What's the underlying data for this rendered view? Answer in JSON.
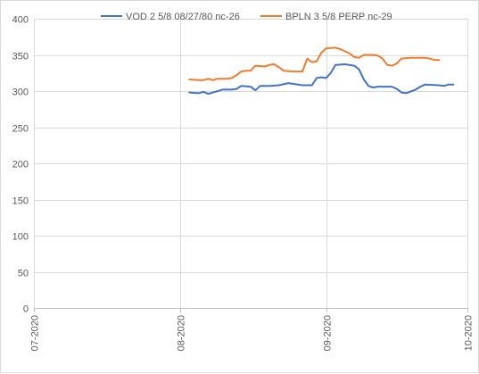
{
  "chart_data": {
    "type": "line",
    "title": "",
    "xlabel": "",
    "ylabel": "",
    "ylim": [
      0,
      400
    ],
    "yticks": [
      0,
      50,
      100,
      150,
      200,
      250,
      300,
      350,
      400
    ],
    "xlim": [
      "2020-07-01",
      "2020-10-01"
    ],
    "xticks": [
      {
        "date": "2020-07-01",
        "label": "07-2020"
      },
      {
        "date": "2020-08-01",
        "label": "08-2020"
      },
      {
        "date": "2020-09-01",
        "label": "09-2020"
      },
      {
        "date": "2020-10-01",
        "label": "10-2020"
      }
    ],
    "grid": {
      "horizontal": true,
      "vertical": true
    },
    "legend_position": "top",
    "series": [
      {
        "name": "VOD 2 5/8 08/27/80 nc-26",
        "color": "#4472c4",
        "points": [
          [
            "2020-08-03",
            298
          ],
          [
            "2020-08-05",
            297
          ],
          [
            "2020-08-06",
            299
          ],
          [
            "2020-08-07",
            296
          ],
          [
            "2020-08-10",
            302
          ],
          [
            "2020-08-12",
            302
          ],
          [
            "2020-08-13",
            303
          ],
          [
            "2020-08-14",
            307
          ],
          [
            "2020-08-16",
            306
          ],
          [
            "2020-08-17",
            301
          ],
          [
            "2020-08-18",
            307
          ],
          [
            "2020-08-20",
            307
          ],
          [
            "2020-08-22",
            308
          ],
          [
            "2020-08-24",
            311
          ],
          [
            "2020-08-25",
            310
          ],
          [
            "2020-08-26",
            309
          ],
          [
            "2020-08-27",
            308
          ],
          [
            "2020-08-28",
            308
          ],
          [
            "2020-08-29",
            308
          ],
          [
            "2020-08-30",
            318
          ],
          [
            "2020-08-31",
            319
          ],
          [
            "2020-09-01",
            318
          ],
          [
            "2020-09-02",
            325
          ],
          [
            "2020-09-03",
            336
          ],
          [
            "2020-09-05",
            337
          ],
          [
            "2020-09-07",
            335
          ],
          [
            "2020-09-08",
            330
          ],
          [
            "2020-09-09",
            316
          ],
          [
            "2020-09-10",
            307
          ],
          [
            "2020-09-11",
            305
          ],
          [
            "2020-09-12",
            306
          ],
          [
            "2020-09-15",
            306
          ],
          [
            "2020-09-16",
            303
          ],
          [
            "2020-09-17",
            298
          ],
          [
            "2020-09-18",
            297
          ],
          [
            "2020-09-20",
            302
          ],
          [
            "2020-09-21",
            306
          ],
          [
            "2020-09-22",
            309
          ],
          [
            "2020-09-25",
            308
          ],
          [
            "2020-09-26",
            307
          ],
          [
            "2020-09-27",
            309
          ],
          [
            "2020-09-28",
            309
          ]
        ]
      },
      {
        "name": "BPLN 3 5/8 PERP nc-29",
        "color": "#ed7d31",
        "points": [
          [
            "2020-08-03",
            316
          ],
          [
            "2020-08-05",
            315
          ],
          [
            "2020-08-06",
            315
          ],
          [
            "2020-08-07",
            317
          ],
          [
            "2020-08-08",
            315
          ],
          [
            "2020-08-09",
            317
          ],
          [
            "2020-08-11",
            317
          ],
          [
            "2020-08-12",
            318
          ],
          [
            "2020-08-13",
            322
          ],
          [
            "2020-08-14",
            327
          ],
          [
            "2020-08-15",
            328
          ],
          [
            "2020-08-16",
            328
          ],
          [
            "2020-08-17",
            335
          ],
          [
            "2020-08-19",
            334
          ],
          [
            "2020-08-20",
            336
          ],
          [
            "2020-08-21",
            337
          ],
          [
            "2020-08-22",
            333
          ],
          [
            "2020-08-23",
            328
          ],
          [
            "2020-08-25",
            327
          ],
          [
            "2020-08-27",
            327
          ],
          [
            "2020-08-28",
            345
          ],
          [
            "2020-08-29",
            340
          ],
          [
            "2020-08-30",
            341
          ],
          [
            "2020-08-31",
            353
          ],
          [
            "2020-09-01",
            359
          ],
          [
            "2020-09-03",
            360
          ],
          [
            "2020-09-04",
            358
          ],
          [
            "2020-09-05",
            355
          ],
          [
            "2020-09-06",
            352
          ],
          [
            "2020-09-07",
            347
          ],
          [
            "2020-09-08",
            346
          ],
          [
            "2020-09-09",
            350
          ],
          [
            "2020-09-11",
            350
          ],
          [
            "2020-09-12",
            349
          ],
          [
            "2020-09-13",
            345
          ],
          [
            "2020-09-14",
            336
          ],
          [
            "2020-09-15",
            335
          ],
          [
            "2020-09-16",
            338
          ],
          [
            "2020-09-17",
            345
          ],
          [
            "2020-09-19",
            346
          ],
          [
            "2020-09-22",
            346
          ],
          [
            "2020-09-23",
            345
          ],
          [
            "2020-09-24",
            343
          ],
          [
            "2020-09-25",
            343
          ]
        ]
      }
    ]
  }
}
